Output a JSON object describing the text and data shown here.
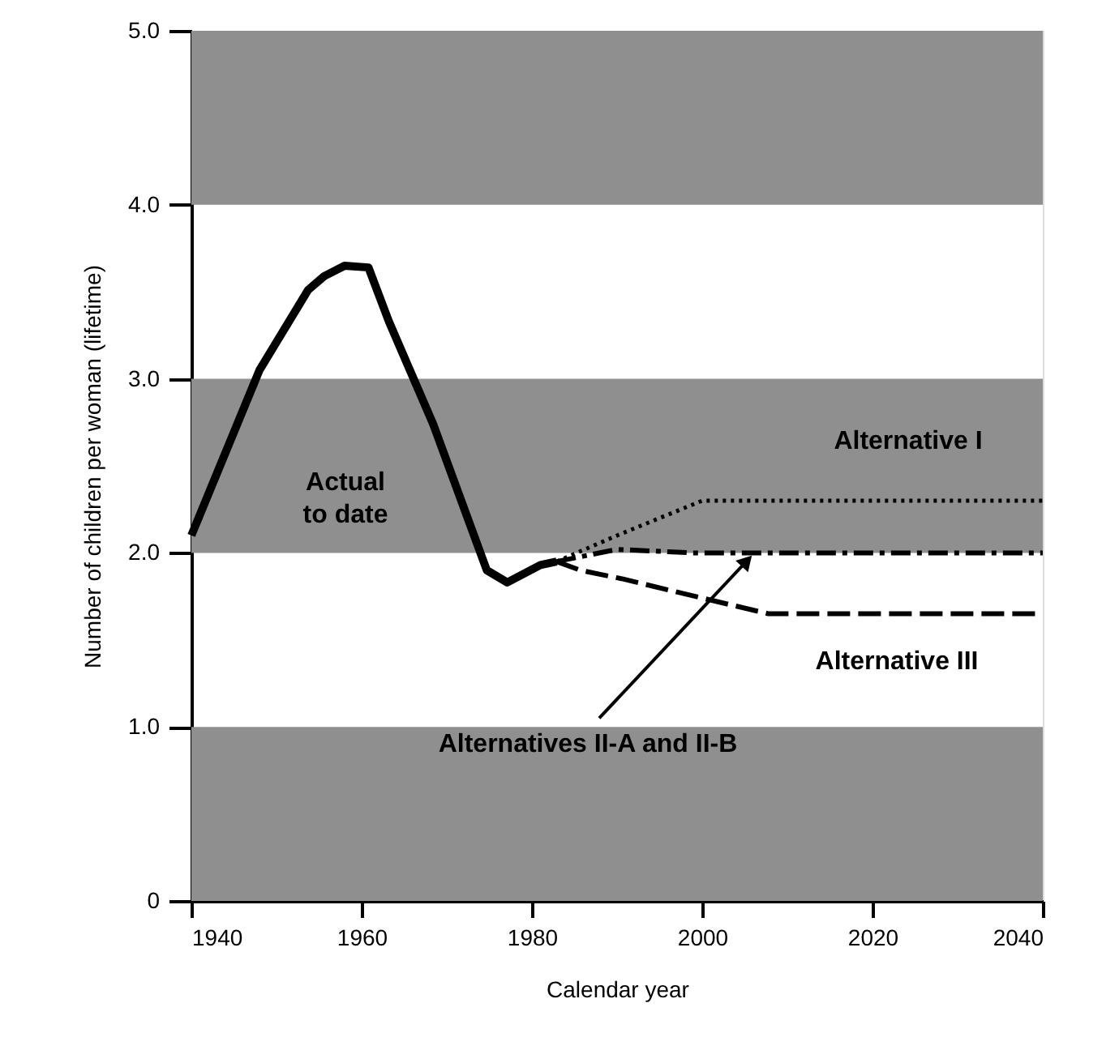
{
  "chart_data": {
    "type": "line",
    "xlabel": "Calendar year",
    "ylabel": "Number of children per woman (lifetime)",
    "xlim": [
      1940,
      2040
    ],
    "xticks": [
      1940,
      1960,
      1980,
      2000,
      2020,
      2040
    ],
    "ylim": [
      0,
      5
    ],
    "yticks": [
      0,
      {
        "value": 1,
        "label": "1.0"
      },
      {
        "value": 2,
        "label": "2.0"
      },
      {
        "value": 3,
        "label": "3.0"
      },
      {
        "value": 4,
        "label": "4.0"
      },
      {
        "value": 5,
        "label": "5.0"
      }
    ],
    "grid": false,
    "series": [
      {
        "name": "Actual to date",
        "color": "#000000",
        "line_style": "solid",
        "x": [
          1940,
          1948,
          1953.7,
          1955.6,
          1958,
          1960.8,
          1963.2,
          1968.4,
          1974.7,
          1977.1,
          1981,
          1982.9
        ],
        "values": [
          2.1,
          3.05,
          3.51,
          3.59,
          3.65,
          3.64,
          3.33,
          2.74,
          1.9,
          1.83,
          1.93,
          1.95
        ]
      },
      {
        "name": "Alternative I",
        "color": "#000000",
        "line_style": "dotted",
        "x": [
          1982.9,
          1990,
          1995,
          2000,
          2040
        ],
        "values": [
          1.95,
          2.1,
          2.2,
          2.3,
          2.3
        ]
      },
      {
        "color": "#000000",
        "line_style": "dashdot",
        "x": [
          1982.9,
          1990,
          1998.8,
          2040
        ],
        "values": [
          1.95,
          2.02,
          2.0,
          2.0
        ]
      },
      {
        "name": "Alternative III",
        "color": "#000000",
        "line_style": "dashed",
        "x": [
          1982.9,
          1985.7,
          1990.7,
          1998.3,
          2007.8,
          2040
        ],
        "values": [
          1.95,
          1.9,
          1.85,
          1.76,
          1.65,
          1.65
        ]
      }
    ],
    "bands": [
      {
        "axis": "y",
        "from": 0,
        "to": 1,
        "color": "#8f8f8f"
      },
      {
        "axis": "y",
        "from": 2,
        "to": 3,
        "color": "#8f8f8f"
      },
      {
        "axis": "y",
        "from": 4,
        "to": 5,
        "color": "#8f8f8f"
      }
    ],
    "annotations": [
      {
        "text": "Alternatives II-A and II-B",
        "x": 2006,
        "y": 2.0
      }
    ]
  }
}
